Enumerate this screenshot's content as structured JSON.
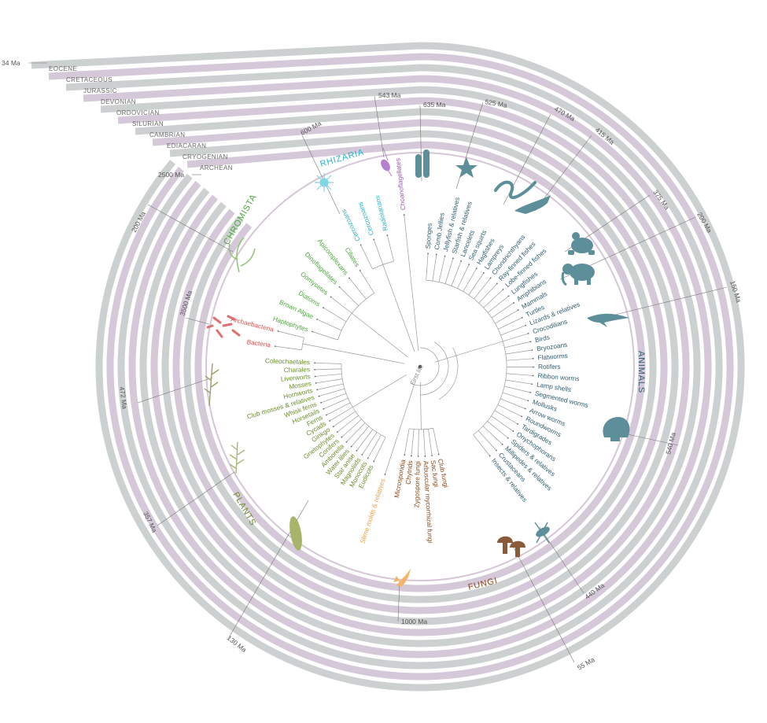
{
  "colors": {
    "ring_a": "#cdd0d0",
    "ring_b": "#d5c8d8",
    "branch": "#9a9a9a",
    "rhizaria": "#2bb3c8",
    "choanoflagellates": "#9b59b6",
    "animals": "#2f5f72",
    "chromista": "#4daa3e",
    "archaea": "#d9534f",
    "plants": "#6b8f2a",
    "fungi": "#8a4a1a",
    "slime": "#f0a040"
  },
  "eras": [
    "EOCENE",
    "CRETACEOUS",
    "JURASSIC",
    "DEVONIAN",
    "ORDOVICIAN",
    "SILURIAN",
    "CAMBRIAN",
    "EDIACARAN",
    "CRYOGENIAN",
    "ARCHEAN"
  ],
  "ma_labels": [
    "34 Ma",
    "2500 Ma",
    "600 Ma",
    "543 Ma",
    "635 Ma",
    "525 Ma",
    "470 Ma",
    "415 Ma",
    "375 Ma",
    "200 Ma",
    "150 Ma",
    "540 Ma",
    "440 Ma",
    "55 Ma",
    "1000 Ma",
    "130 Ma",
    "357 Ma",
    "472 Ma",
    "3500 Ma",
    "200 Ma"
  ],
  "center_label": "First life",
  "groups": {
    "rhizaria": "RHIZARIA",
    "chromista": "CHROMISTA",
    "animals": "ANIMALS",
    "plants": "PLANTS",
    "fungi": "FUNGI"
  },
  "taxa": {
    "rhizaria": [
      "Cercozoans",
      "Cercozoans",
      "Radiolarians"
    ],
    "choano": [
      "Choanoflagellates"
    ],
    "animals": [
      "Sponges",
      "Comb Jellies",
      "Jellyfish & relatives",
      "Starfish & relatives",
      "Lancelets",
      "Sea squirts",
      "Hagfishes",
      "Lampreys",
      "Chondrichthyans",
      "Ray-finned fishes",
      "Lobe-finned fishes",
      "Lungfishes",
      "Amphibians",
      "Mammals",
      "Turtles",
      "Lizards & relatives",
      "Crocodilians",
      "Birds",
      "Bryozoans",
      "Flatworms",
      "Rotifers",
      "Ribbon worms",
      "Lamp shells",
      "Segmented worms",
      "Mollusks",
      "Arrow worms",
      "Roundworms",
      "Tardigrades",
      "Onychophorans",
      "Spiders & relatives",
      "Millipedes & relatives",
      "Crustaceans",
      "Insects & relatives"
    ],
    "fungi": [
      "Club fungi",
      "Sac fungi",
      "Arbuscular mycorrhizal fungi",
      "Zygospore fungi",
      "Chytrids",
      "Microsporidia"
    ],
    "slime": [
      "Slime molds & relatives"
    ],
    "plants": [
      "Eudicots",
      "Monocots",
      "Magnoliids",
      "Star anise",
      "Water lilies",
      "Amborella",
      "Conifers",
      "Gnetophytes",
      "Ginkgo",
      "Cycads",
      "Ferns",
      "Horsetails",
      "Whisk ferns",
      "Club mosses & relatives",
      "Hornworts",
      "Mosses",
      "Liverworts",
      "Charales",
      "Coleochaetales"
    ],
    "archaea": [
      "Bacteria",
      "Archaebacteria"
    ],
    "chromista": [
      "Haptophytes",
      "Brown Algae",
      "Diatoms",
      "Oomycetes",
      "Dinoflagellates",
      "Apicomplexans",
      "Ciliates"
    ]
  }
}
